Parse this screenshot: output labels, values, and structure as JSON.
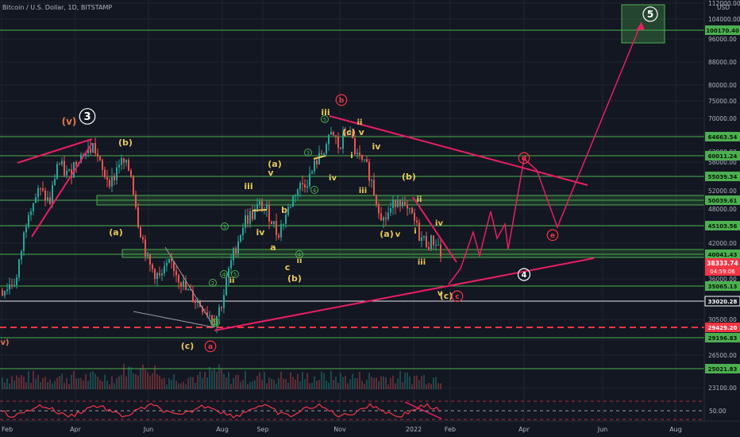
{
  "header": {
    "title": "Bitcoin / U.S. Dollar, 1D, BITSTAMP"
  },
  "chart_data": {
    "type": "line",
    "title": "Bitcoin / U.S. Dollar, 1D, BITSTAMP",
    "price_axis": {
      "currency": "USD",
      "ticks": [
        112000,
        104000,
        96000,
        88000,
        80000,
        75000,
        70000,
        66000,
        62000,
        58000,
        55000,
        52000,
        48000,
        45000,
        42000,
        36000,
        30500,
        28000,
        26500,
        23100
      ]
    },
    "time_axis": {
      "labels": [
        "Feb",
        "Apr",
        "Jun",
        "Aug",
        "Sep",
        "Nov",
        "2022",
        "Feb",
        "Apr",
        "Jun",
        "Aug"
      ]
    },
    "horizontal_levels": [
      {
        "value": 100170.4,
        "label": "100170.40",
        "color": "#4caf50"
      },
      {
        "value": 64663.54,
        "label": "64663.54",
        "color": "#4caf50"
      },
      {
        "value": 60011.24,
        "label": "60011.24",
        "color": "#4caf50"
      },
      {
        "value": 55039.34,
        "label": "55039.34",
        "color": "#4caf50"
      },
      {
        "value": 50039.61,
        "label": "50039.61",
        "color": "#4caf50"
      },
      {
        "value": 45103.56,
        "label": "45103.56",
        "color": "#4caf50"
      },
      {
        "value": 40041.43,
        "label": "40041.43",
        "color": "#4caf50"
      },
      {
        "value": 35065.13,
        "label": "35065.13",
        "color": "#4caf50"
      },
      {
        "value": 33020.28,
        "label": "33020.28",
        "color": "#ffffff"
      },
      {
        "value": 29429.2,
        "label": "29429.20",
        "color": "#f23645"
      },
      {
        "value": 29196.83,
        "label": "29196.83",
        "color": "#4caf50"
      },
      {
        "value": 25021.83,
        "label": "25021.83",
        "color": "#4caf50"
      }
    ],
    "current_price": {
      "value": 38333.74,
      "label": "38333.74",
      "countdown": "04:59:06",
      "color": "#f23645"
    },
    "rsi": {
      "level_label": "50.00"
    },
    "wave_labels": [
      {
        "text": "(v)",
        "color": "#e0784a"
      },
      {
        "text": "3",
        "color": "#ffffff",
        "circled": true
      },
      {
        "text": "(b)",
        "color": "#e8c85a"
      },
      {
        "text": "(a)",
        "color": "#e8c85a"
      },
      {
        "text": "(c)",
        "color": "#e8c85a"
      },
      {
        "text": "a",
        "color": "#f23645",
        "circled": true
      },
      {
        "text": "iii",
        "color": "#e8c85a"
      },
      {
        "text": "iv",
        "color": "#e8c85a"
      },
      {
        "text": "v",
        "color": "#e8c85a"
      },
      {
        "text": "(a)",
        "color": "#e8c85a"
      },
      {
        "text": "b",
        "color": "#e8c85a"
      },
      {
        "text": "a",
        "color": "#e8c85a"
      },
      {
        "text": "c",
        "color": "#e8c85a"
      },
      {
        "text": "(b)",
        "color": "#e8c85a"
      },
      {
        "text": "ii",
        "color": "#e8c85a"
      },
      {
        "text": "ii",
        "color": "#e8c85a"
      },
      {
        "text": "iii",
        "color": "#e8c85a"
      },
      {
        "text": "(c) v",
        "color": "#e8c85a"
      },
      {
        "text": "b",
        "color": "#f23645",
        "circled": true
      },
      {
        "text": "ii",
        "color": "#e8c85a"
      },
      {
        "text": "iv",
        "color": "#e8c85a"
      },
      {
        "text": "i",
        "color": "#e8c85a"
      },
      {
        "text": "iv",
        "color": "#e8c85a"
      },
      {
        "text": "iii",
        "color": "#e8c85a"
      },
      {
        "text": "(b)",
        "color": "#e8c85a"
      },
      {
        "text": "(a)",
        "color": "#e8c85a"
      },
      {
        "text": "v",
        "color": "#e8c85a"
      },
      {
        "text": "ii",
        "color": "#e8c85a"
      },
      {
        "text": "i",
        "color": "#e8c85a"
      },
      {
        "text": "iii",
        "color": "#e8c85a"
      },
      {
        "text": "iv",
        "color": "#e8c85a"
      },
      {
        "text": "v",
        "color": "#e8c85a"
      },
      {
        "text": "(c)",
        "color": "#e8c85a"
      },
      {
        "text": "c",
        "color": "#f23645",
        "circled": true
      },
      {
        "text": "4",
        "color": "#ffffff",
        "circled": true
      },
      {
        "text": "d",
        "color": "#f23645",
        "circled": true
      },
      {
        "text": "e",
        "color": "#f23645",
        "circled": true
      },
      {
        "text": "5",
        "color": "#ffffff",
        "circled": true
      },
      {
        "text": "v)",
        "color": "#e0784a"
      }
    ],
    "minor_wave_labels": [
      "1",
      "2",
      "3",
      "4",
      "5",
      "3",
      "4",
      "5",
      "4",
      "2"
    ]
  }
}
